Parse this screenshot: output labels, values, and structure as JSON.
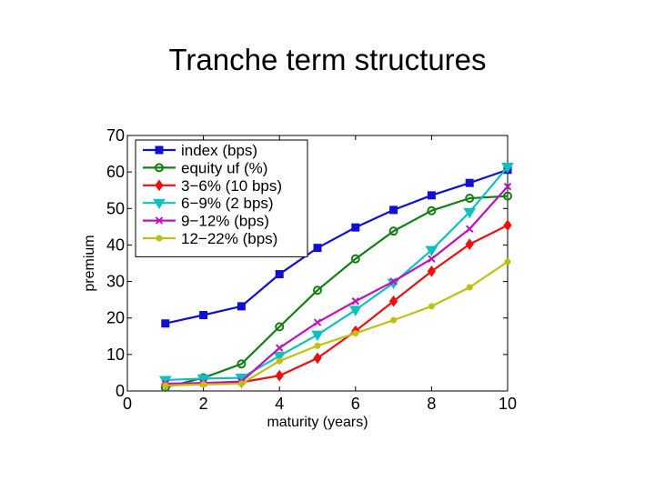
{
  "slide": {
    "title": "Tranche term structures"
  },
  "chart_data": {
    "type": "line",
    "title": "",
    "xlabel": "maturity (years)",
    "ylabel": "premium",
    "xlim": [
      0,
      10
    ],
    "ylim": [
      0,
      70
    ],
    "xticks": [
      0,
      2,
      4,
      6,
      8,
      10
    ],
    "yticks": [
      0,
      10,
      20,
      30,
      40,
      50,
      60,
      70
    ],
    "grid": false,
    "legend_position": "top-left",
    "x": [
      1,
      2,
      3,
      4,
      5,
      6,
      7,
      8,
      9,
      10
    ],
    "series": [
      {
        "name": "index (bps)",
        "color": "#1010d0",
        "marker": "square",
        "values": [
          18.5,
          20.8,
          23.2,
          32.0,
          39.2,
          44.8,
          49.6,
          53.6,
          57.0,
          60.6
        ]
      },
      {
        "name": "equity uf (%)",
        "color": "#128012",
        "marker": "circle",
        "values": [
          1.0,
          3.6,
          7.4,
          17.6,
          27.6,
          36.2,
          43.8,
          49.4,
          52.8,
          53.4
        ]
      },
      {
        "name": "3−6% (10 bps)",
        "color": "#ee1010",
        "marker": "diamond",
        "values": [
          1.8,
          2.2,
          2.4,
          4.2,
          9.0,
          16.4,
          24.6,
          32.8,
          40.2,
          45.4
        ]
      },
      {
        "name": "6−9% (2 bps)",
        "color": "#10c0c0",
        "marker": "triangle-down",
        "values": [
          3.0,
          3.4,
          3.6,
          9.6,
          15.4,
          22.2,
          29.6,
          38.6,
          49.0,
          61.4
        ]
      },
      {
        "name": "9−12% (bps)",
        "color": "#c010c0",
        "marker": "x",
        "values": [
          2.0,
          2.2,
          2.6,
          11.8,
          18.8,
          24.6,
          30.0,
          36.2,
          44.4,
          56.0
        ]
      },
      {
        "name": "12−22% (bps)",
        "color": "#c0c010",
        "marker": "dot",
        "values": [
          1.5,
          1.8,
          2.0,
          8.2,
          12.4,
          15.8,
          19.4,
          23.2,
          28.4,
          35.4
        ]
      }
    ]
  }
}
